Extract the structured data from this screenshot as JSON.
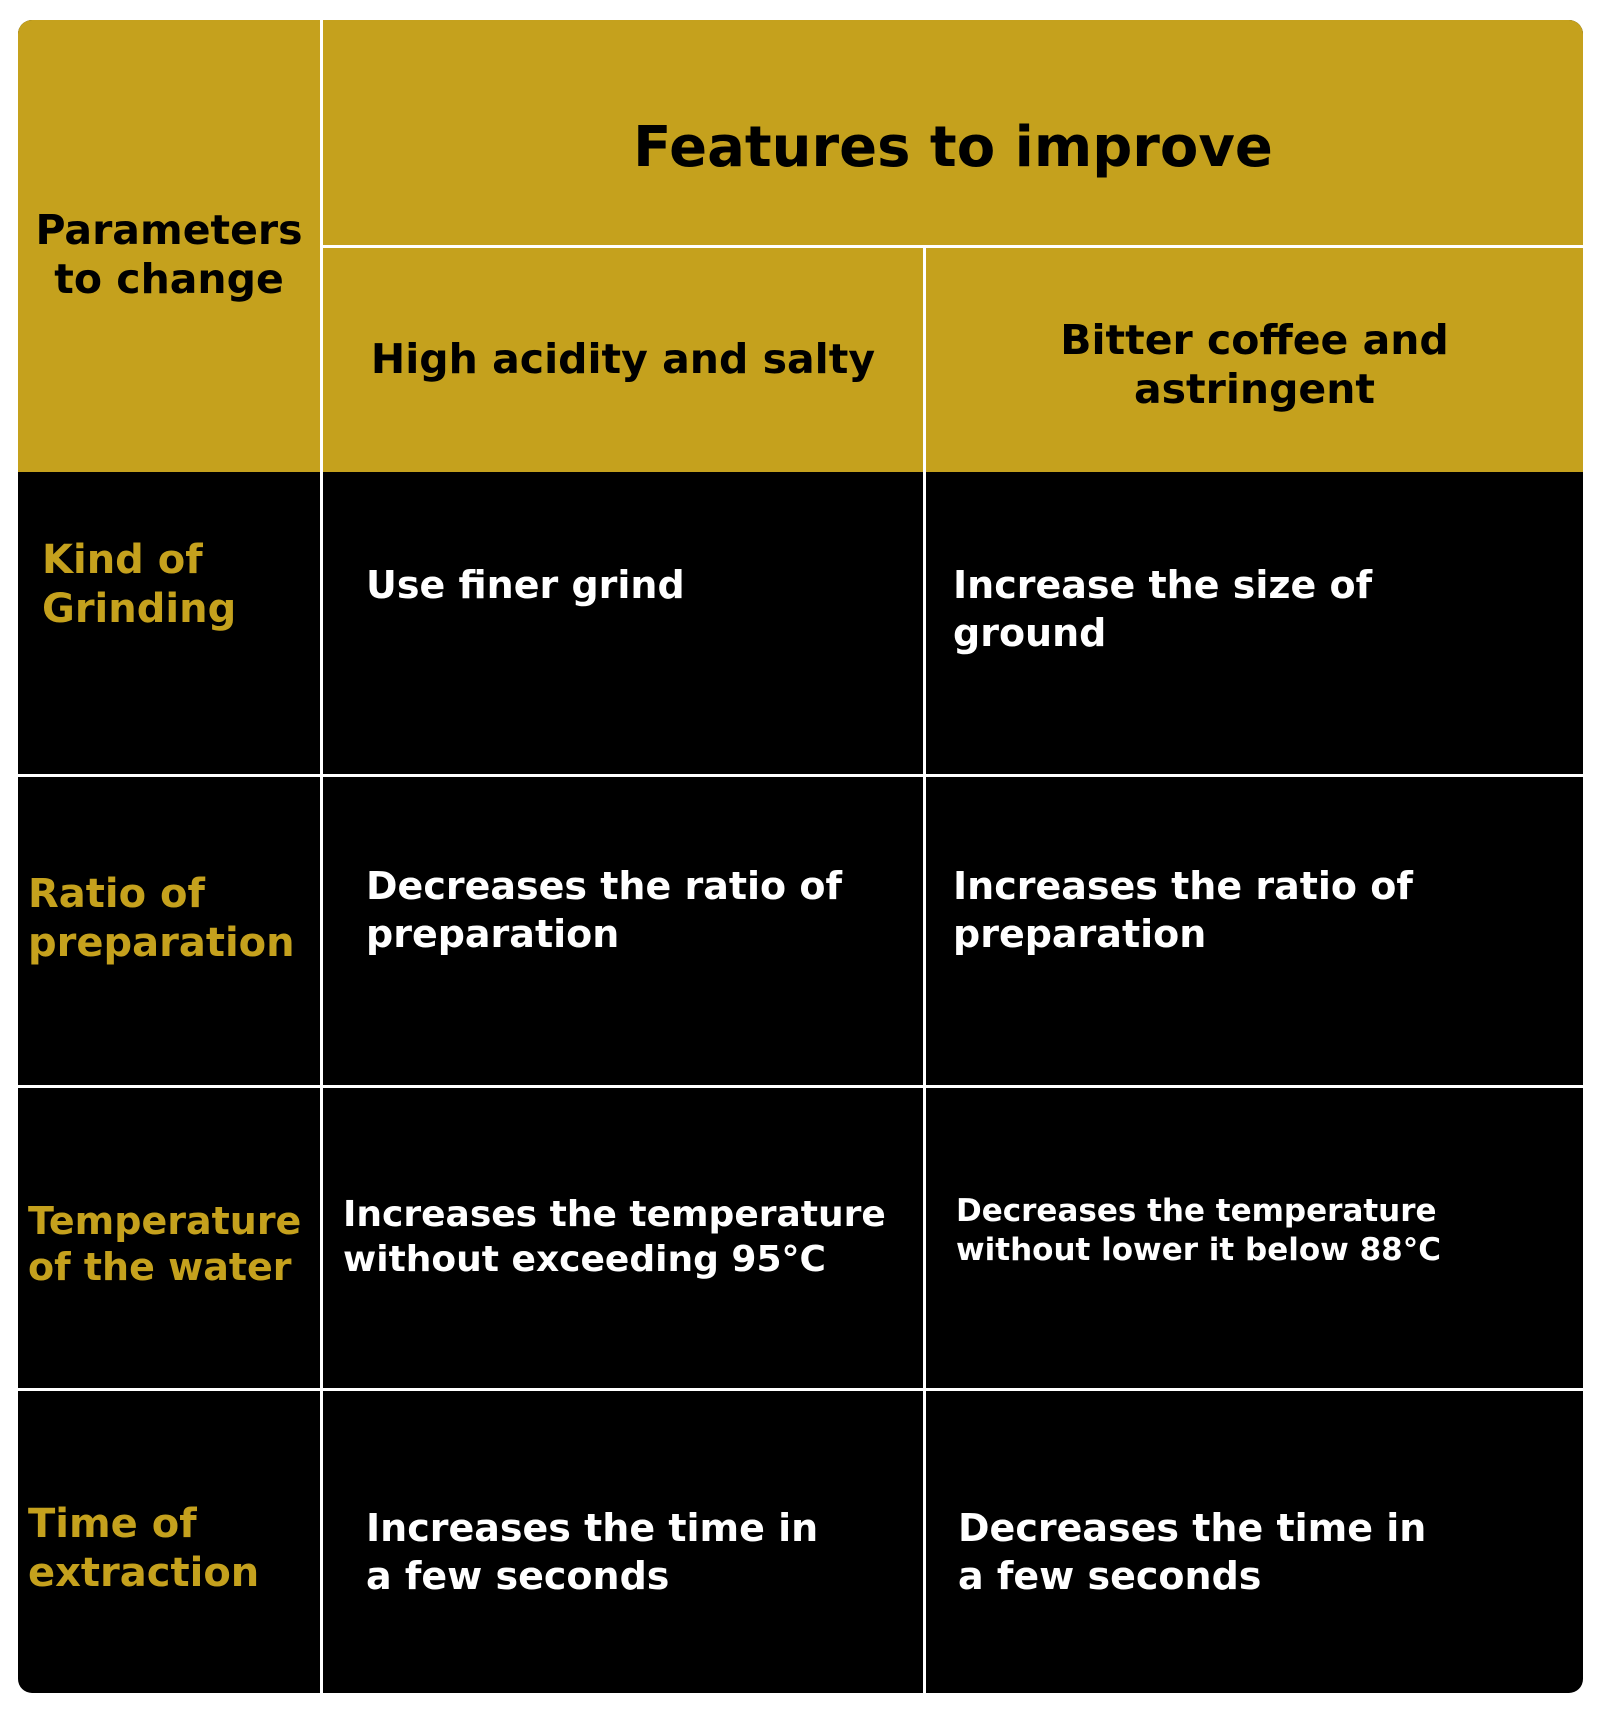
{
  "header": {
    "params_label_line1": "Parameters",
    "params_label_line2": "to change",
    "features_title": "Features to improve",
    "col1_title": "High acidity and salty",
    "col2_title_line1": "Bitter coffee and",
    "col2_title_line2": "astringent"
  },
  "rows": [
    {
      "param_line1": "Kind of",
      "param_line2": "Grinding",
      "col1_line1": "Use finer grind",
      "col1_line2": "",
      "col2_line1": "Increase the size of",
      "col2_line2": "ground"
    },
    {
      "param_line1": "Ratio of",
      "param_line2": "preparation",
      "col1_line1": "Decreases the ratio of",
      "col1_line2": "preparation",
      "col2_line1": "Increases the ratio of",
      "col2_line2": "preparation"
    },
    {
      "param_line1": "Temperature",
      "param_line2": "of the water",
      "col1_line1": "Increases the temperature",
      "col1_line2": "without exceeding 95°C",
      "col2_line1": "Decreases the temperature",
      "col2_line2": "without lower it below 88°C"
    },
    {
      "param_line1": "Time of",
      "param_line2": "extraction",
      "col1_line1": "Increases the time in",
      "col1_line2": "a few seconds",
      "col2_line1": "Decreases the time in",
      "col2_line2": "a few seconds"
    }
  ],
  "colors": {
    "gold": "#c5a11d",
    "black": "#000000",
    "white": "#ffffff"
  }
}
